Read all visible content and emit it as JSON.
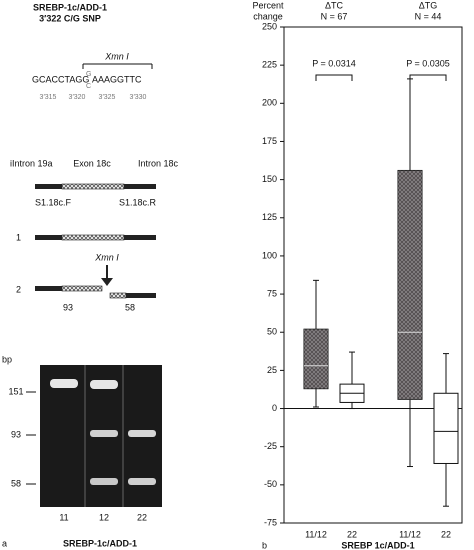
{
  "panel_a": {
    "label": "a",
    "title": "SREBP-1c/ADD-1",
    "subtitle": "3′322 C/G SNP",
    "enzyme": "Xmn I",
    "sequence_left": "GCACCTAGG",
    "snp_top": "G",
    "snp_bottom": "C",
    "sequence_right": "AAAGGTTC",
    "positions": [
      "3′315",
      "3′320",
      "3′325",
      "3′330"
    ],
    "gene_labels": [
      "iIntron 19a",
      "Exon 18c",
      "Intron 18c"
    ],
    "primers": [
      "S1.18c.F",
      "S1.18c.R"
    ],
    "alleles": [
      "1",
      "2"
    ],
    "fragments": [
      "93",
      "58"
    ],
    "gel": {
      "unit": "bp",
      "sizes": [
        "151",
        "93",
        "58"
      ],
      "lanes": [
        "11",
        "12",
        "22"
      ],
      "caption": "SREBP-1c/ADD-1"
    }
  },
  "chart_data": {
    "type": "box",
    "panel_label": "b",
    "y_label": [
      "Percent",
      "change"
    ],
    "x_label": "SREBP 1c/ADD-1",
    "groups": [
      {
        "name": "ΔTC",
        "n": "N = 67",
        "p": "P = 0.0314"
      },
      {
        "name": "ΔTG",
        "n": "N = 44",
        "p": "P = 0.0305"
      }
    ],
    "categories": [
      "11/12",
      "22",
      "11/12",
      "22"
    ],
    "colors": [
      "#4a4346",
      "#ffffff",
      "#4a4346",
      "#ffffff"
    ],
    "whisker_low": [
      1,
      0,
      -38,
      -64
    ],
    "q1": [
      13,
      4,
      6,
      -36
    ],
    "median": [
      28,
      10,
      50,
      -15
    ],
    "q3": [
      52,
      16,
      156,
      10
    ],
    "whisker_high": [
      84,
      37,
      216,
      36
    ],
    "ylim": [
      -75,
      250
    ],
    "yticks": [
      -75,
      -50,
      -25,
      0,
      25,
      50,
      75,
      100,
      125,
      150,
      175,
      200,
      225,
      250
    ]
  }
}
